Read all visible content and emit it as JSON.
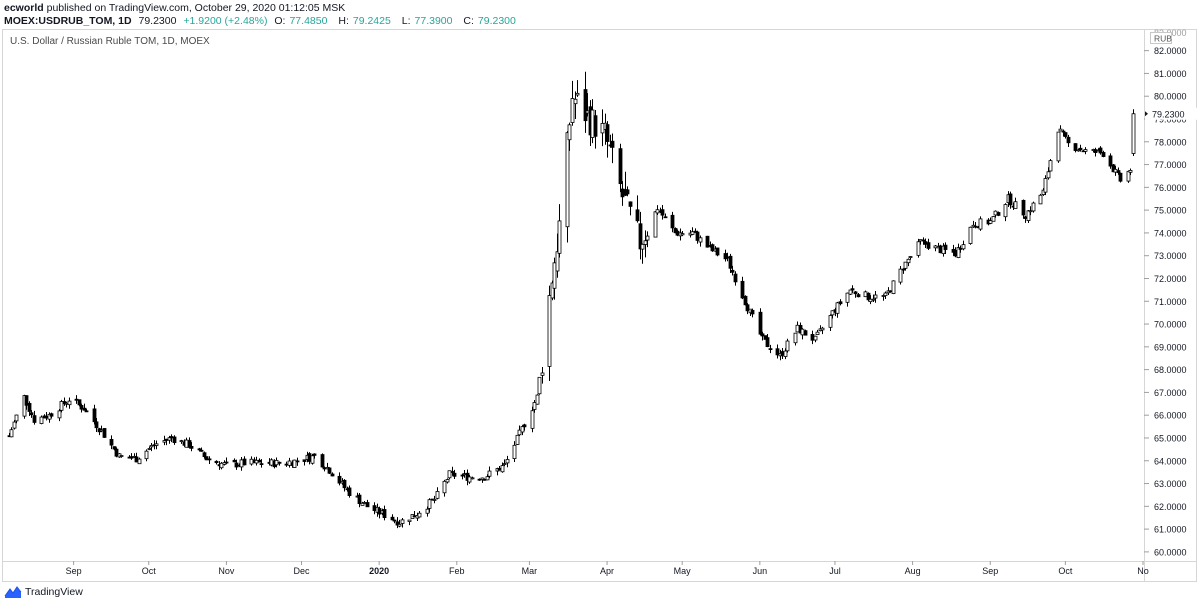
{
  "header": {
    "user": "ecworld",
    "published": "published on TradingView.com, October 29, 2020 01:12:05 MSK",
    "symbol": "MOEX:USDRUB_TOM, 1D",
    "last": "79.2300",
    "change": "+1.9200 (+2.48%)",
    "o_label": "O:",
    "o_value": "77.4850",
    "h_label": "H:",
    "h_value": "79.2425",
    "l_label": "L:",
    "l_value": "77.3900",
    "c_label": "C:",
    "c_value": "79.2300"
  },
  "footer": {
    "brand": "TradingView"
  },
  "colors": {
    "candle": "#000000",
    "axis_text": "#131722",
    "accent": "#26a69a",
    "border": "#d6d6d6",
    "logo": "#2962ff"
  },
  "chart_data": {
    "type": "candlestick",
    "title": "U.S. Dollar / Russian Ruble TOM, 1D, MOEX",
    "currency_label": "RUB",
    "last_price_label": "79.2300",
    "top_partial_label": "83.0000",
    "ylim": [
      59.6,
      82.95
    ],
    "y_ticks": [
      "60.0000",
      "61.0000",
      "62.0000",
      "63.0000",
      "64.0000",
      "65.0000",
      "66.0000",
      "67.0000",
      "68.0000",
      "69.0000",
      "70.0000",
      "71.0000",
      "72.0000",
      "73.0000",
      "74.0000",
      "75.0000",
      "76.0000",
      "77.0000",
      "78.0000",
      "79.0000",
      "80.0000",
      "81.0000",
      "82.0000"
    ],
    "x_ticks": [
      "Sep",
      "Oct",
      "Nov",
      "Dec",
      "2020",
      "Feb",
      "Mar",
      "Apr",
      "May",
      "Jun",
      "Jul",
      "Aug",
      "Sep",
      "Oct",
      "No"
    ],
    "x_tick_bold": [
      "2020"
    ],
    "keypoints": [
      [
        "2019-08-06",
        65.1
      ],
      [
        "2019-08-12",
        66.8
      ],
      [
        "2019-08-16",
        65.8
      ],
      [
        "2019-08-22",
        66.0
      ],
      [
        "2019-08-30",
        66.7
      ],
      [
        "2019-09-05",
        66.3
      ],
      [
        "2019-09-12",
        65.3
      ],
      [
        "2019-09-19",
        64.2
      ],
      [
        "2019-09-26",
        64.1
      ],
      [
        "2019-10-03",
        64.7
      ],
      [
        "2019-10-10",
        65.0
      ],
      [
        "2019-10-17",
        64.7
      ],
      [
        "2019-10-24",
        64.1
      ],
      [
        "2019-11-01",
        63.8
      ],
      [
        "2019-11-08",
        63.9
      ],
      [
        "2019-11-15",
        63.9
      ],
      [
        "2019-11-22",
        63.9
      ],
      [
        "2019-11-29",
        64.0
      ],
      [
        "2019-12-06",
        64.2
      ],
      [
        "2019-12-12",
        63.6
      ],
      [
        "2019-12-19",
        62.7
      ],
      [
        "2019-12-27",
        62.0
      ],
      [
        "2020-01-09",
        61.3
      ],
      [
        "2020-01-16",
        61.7
      ],
      [
        "2020-01-23",
        62.3
      ],
      [
        "2020-01-29",
        63.4
      ],
      [
        "2020-02-05",
        63.3
      ],
      [
        "2020-02-12",
        63.3
      ],
      [
        "2020-02-20",
        63.8
      ],
      [
        "2020-02-27",
        65.4
      ],
      [
        "2020-03-04",
        66.8
      ],
      [
        "2020-03-06",
        68.4
      ],
      [
        "2020-03-10",
        72.1
      ],
      [
        "2020-03-13",
        74.3
      ],
      [
        "2020-03-18",
        80.0
      ],
      [
        "2020-03-24",
        79.1
      ],
      [
        "2020-03-31",
        78.3
      ],
      [
        "2020-04-07",
        75.6
      ],
      [
        "2020-04-14",
        73.6
      ],
      [
        "2020-04-21",
        75.1
      ],
      [
        "2020-04-28",
        74.0
      ],
      [
        "2020-05-05",
        74.0
      ],
      [
        "2020-05-12",
        73.3
      ],
      [
        "2020-05-19",
        72.8
      ],
      [
        "2020-05-26",
        71.0
      ],
      [
        "2020-06-02",
        69.3
      ],
      [
        "2020-06-09",
        68.6
      ],
      [
        "2020-06-16",
        69.8
      ],
      [
        "2020-06-23",
        69.3
      ],
      [
        "2020-06-30",
        70.5
      ],
      [
        "2020-07-07",
        71.5
      ],
      [
        "2020-07-14",
        71.2
      ],
      [
        "2020-07-21",
        71.2
      ],
      [
        "2020-07-28",
        72.5
      ],
      [
        "2020-08-04",
        73.6
      ],
      [
        "2020-08-11",
        73.3
      ],
      [
        "2020-08-18",
        73.1
      ],
      [
        "2020-08-25",
        74.4
      ],
      [
        "2020-09-01",
        74.5
      ],
      [
        "2020-09-08",
        75.5
      ],
      [
        "2020-09-15",
        74.8
      ],
      [
        "2020-09-22",
        75.8
      ],
      [
        "2020-09-28",
        78.6
      ],
      [
        "2020-10-02",
        77.9
      ],
      [
        "2020-10-09",
        77.6
      ],
      [
        "2020-10-16",
        77.5
      ],
      [
        "2020-10-23",
        76.3
      ],
      [
        "2020-10-27",
        76.8
      ],
      [
        "2020-10-28",
        79.23
      ]
    ]
  }
}
